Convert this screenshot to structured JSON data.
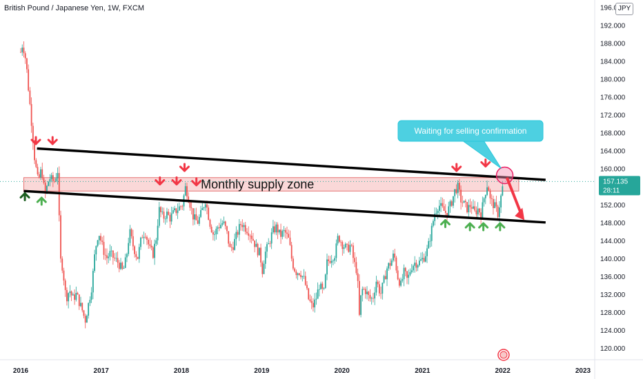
{
  "chart_data": {
    "type": "candlestick",
    "title": "British Pound / Japanese Yen, 1W, FXCM",
    "currency": "JPY",
    "ylim": [
      118,
      197
    ],
    "yticks": [
      120,
      124,
      128,
      132,
      136,
      140,
      144,
      148,
      152,
      156,
      160,
      164,
      168,
      172,
      176,
      180,
      184,
      188,
      192,
      196
    ],
    "x_ticks": [
      "2016",
      "2017",
      "2018",
      "2019",
      "2020",
      "2021",
      "2022",
      "2023"
    ],
    "last_price": "157.135",
    "countdown": "28:11",
    "up_color": "#26a69a",
    "down_color": "#ef5350",
    "price_path": [
      [
        "2016-01-01",
        186
      ],
      [
        "2016-01-10",
        188
      ],
      [
        "2016-01-25",
        184
      ],
      [
        "2016-02-05",
        178
      ],
      [
        "2016-02-20",
        170
      ],
      [
        "2016-03-05",
        162
      ],
      [
        "2016-03-20",
        157
      ],
      [
        "2016-04-05",
        160
      ],
      [
        "2016-04-20",
        154
      ],
      [
        "2016-05-10",
        158
      ],
      [
        "2016-06-01",
        157
      ],
      [
        "2016-06-20",
        160
      ],
      [
        "2016-06-27",
        140
      ],
      [
        "2016-07-10",
        138
      ],
      [
        "2016-07-25",
        131
      ],
      [
        "2016-08-10",
        133
      ],
      [
        "2016-08-25",
        131
      ],
      [
        "2016-09-10",
        132
      ],
      [
        "2016-09-25",
        130
      ],
      [
        "2016-10-10",
        128
      ],
      [
        "2016-10-20",
        126
      ],
      [
        "2016-11-05",
        130
      ],
      [
        "2016-11-20",
        134
      ],
      [
        "2016-12-05",
        142
      ],
      [
        "2016-12-20",
        146
      ],
      [
        "2017-01-10",
        142
      ],
      [
        "2017-01-25",
        140
      ],
      [
        "2017-02-10",
        141
      ],
      [
        "2017-03-01",
        140
      ],
      [
        "2017-03-20",
        139
      ],
      [
        "2017-04-10",
        137
      ],
      [
        "2017-04-25",
        140
      ],
      [
        "2017-05-10",
        146
      ],
      [
        "2017-05-25",
        143
      ],
      [
        "2017-06-15",
        140
      ],
      [
        "2017-07-05",
        145
      ],
      [
        "2017-07-20",
        146
      ],
      [
        "2017-08-10",
        142
      ],
      [
        "2017-08-25",
        141
      ],
      [
        "2017-09-10",
        145
      ],
      [
        "2017-09-20",
        151
      ],
      [
        "2017-10-10",
        149
      ],
      [
        "2017-10-25",
        150
      ],
      [
        "2017-11-10",
        149
      ],
      [
        "2017-11-25",
        150
      ],
      [
        "2017-12-15",
        151
      ],
      [
        "2018-01-05",
        152
      ],
      [
        "2018-01-20",
        156
      ],
      [
        "2018-02-05",
        153
      ],
      [
        "2018-02-25",
        149
      ],
      [
        "2018-03-15",
        148
      ],
      [
        "2018-04-01",
        150
      ],
      [
        "2018-04-20",
        153
      ],
      [
        "2018-05-10",
        148
      ],
      [
        "2018-05-28",
        145
      ],
      [
        "2018-06-15",
        147
      ],
      [
        "2018-07-10",
        148
      ],
      [
        "2018-07-25",
        146
      ],
      [
        "2018-08-10",
        142
      ],
      [
        "2018-08-25",
        143
      ],
      [
        "2018-09-15",
        146
      ],
      [
        "2018-10-01",
        148
      ],
      [
        "2018-10-15",
        147
      ],
      [
        "2018-11-05",
        146
      ],
      [
        "2018-11-25",
        144
      ],
      [
        "2018-12-10",
        142
      ],
      [
        "2018-12-25",
        141
      ],
      [
        "2019-01-03",
        137
      ],
      [
        "2019-01-15",
        141
      ],
      [
        "2019-02-01",
        143
      ],
      [
        "2019-02-20",
        146
      ],
      [
        "2019-03-10",
        147
      ],
      [
        "2019-03-25",
        145
      ],
      [
        "2019-04-15",
        146
      ],
      [
        "2019-05-05",
        144
      ],
      [
        "2019-05-20",
        139
      ],
      [
        "2019-06-05",
        137
      ],
      [
        "2019-06-25",
        137
      ],
      [
        "2019-07-15",
        135
      ],
      [
        "2019-08-01",
        131
      ],
      [
        "2019-08-20",
        129
      ],
      [
        "2019-09-05",
        131
      ],
      [
        "2019-09-20",
        134
      ],
      [
        "2019-10-10",
        132
      ],
      [
        "2019-10-25",
        139
      ],
      [
        "2019-11-10",
        140
      ],
      [
        "2019-12-01",
        141
      ],
      [
        "2019-12-15",
        145
      ],
      [
        "2020-01-05",
        143
      ],
      [
        "2020-01-25",
        142
      ],
      [
        "2020-02-10",
        143
      ],
      [
        "2020-02-25",
        139
      ],
      [
        "2020-03-10",
        137
      ],
      [
        "2020-03-20",
        127
      ],
      [
        "2020-03-30",
        133
      ],
      [
        "2020-04-15",
        133
      ],
      [
        "2020-05-05",
        131
      ],
      [
        "2020-05-20",
        131
      ],
      [
        "2020-06-05",
        135
      ],
      [
        "2020-06-25",
        132
      ],
      [
        "2020-07-10",
        135
      ],
      [
        "2020-07-25",
        138
      ],
      [
        "2020-08-10",
        139
      ],
      [
        "2020-08-25",
        141
      ],
      [
        "2020-09-10",
        136
      ],
      [
        "2020-09-25",
        134
      ],
      [
        "2020-10-10",
        137
      ],
      [
        "2020-10-25",
        135
      ],
      [
        "2020-11-10",
        138
      ],
      [
        "2020-11-25",
        139
      ],
      [
        "2020-12-15",
        139
      ],
      [
        "2021-01-05",
        140
      ],
      [
        "2021-01-25",
        142
      ],
      [
        "2021-02-10",
        146
      ],
      [
        "2021-02-25",
        150
      ],
      [
        "2021-03-15",
        152
      ],
      [
        "2021-04-01",
        151
      ],
      [
        "2021-04-20",
        150
      ],
      [
        "2021-05-10",
        152
      ],
      [
        "2021-05-28",
        155
      ],
      [
        "2021-06-10",
        156
      ],
      [
        "2021-06-25",
        153
      ],
      [
        "2021-07-10",
        152
      ],
      [
        "2021-07-25",
        151
      ],
      [
        "2021-08-10",
        152
      ],
      [
        "2021-08-25",
        150
      ],
      [
        "2021-09-10",
        151
      ],
      [
        "2021-09-25",
        150
      ],
      [
        "2021-10-10",
        154
      ],
      [
        "2021-10-25",
        157
      ],
      [
        "2021-11-05",
        153
      ],
      [
        "2021-11-20",
        152
      ],
      [
        "2021-12-01",
        151
      ],
      [
        "2021-12-10",
        150
      ],
      [
        "2021-12-25",
        154
      ],
      [
        "2022-01-05",
        157.135
      ]
    ],
    "resistance_line": {
      "from": [
        "2016-03-15",
        164.5
      ],
      "to": [
        "2022-07-15",
        157.5
      ]
    },
    "support_line": {
      "from": [
        "2016-01-15",
        155
      ],
      "to": [
        "2022-07-15",
        148
      ]
    },
    "supply_zone": {
      "label": "Monthly supply zone",
      "x": [
        "2016-01-15",
        "2022-03-15"
      ],
      "y": [
        155,
        158
      ]
    },
    "callout": "Waiting for selling confirmation",
    "down_arrows_red": [
      [
        "2016-03-10",
        165.5
      ],
      [
        "2016-05-25",
        165.5
      ],
      [
        "2018-01-15",
        159.5
      ],
      [
        "2017-09-25",
        156.5
      ],
      [
        "2017-12-10",
        156.5
      ],
      [
        "2018-03-10",
        156.3
      ],
      [
        "2021-06-05",
        159.5
      ],
      [
        "2021-10-15",
        160.5
      ]
    ],
    "up_arrows_green": [
      [
        "2016-04-05",
        153.5
      ],
      [
        "2021-04-15",
        148.5
      ],
      [
        "2021-08-05",
        147.8
      ],
      [
        "2021-10-05",
        147.8
      ],
      [
        "2021-12-20",
        147.8
      ]
    ],
    "dark_up_arrow": [
      "2016-01-20",
      154.5
    ],
    "projection_arrow": {
      "from": [
        "2022-01-20",
        158
      ],
      "to": [
        "2022-04-10",
        148.5
      ]
    },
    "highlight_circle": [
      "2022-01-10",
      158.5
    ]
  }
}
